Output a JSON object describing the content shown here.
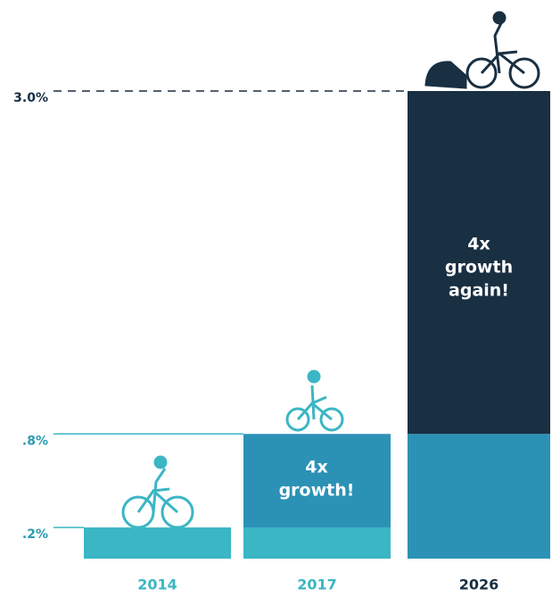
{
  "chart_data": {
    "type": "bar",
    "categories": [
      "2014",
      "2017",
      "2026"
    ],
    "series": [
      {
        "color": "#3bb6c4",
        "values": [
          0.2,
          0.2,
          null
        ]
      },
      {
        "color": "#2b92b6",
        "values": [
          null,
          0.6,
          0.8
        ]
      },
      {
        "color": "#192f42",
        "values": [
          null,
          null,
          2.2
        ]
      }
    ],
    "ylim": [
      0,
      3
    ],
    "yticks": [
      {
        "value": 0.2,
        "label": ".2%"
      },
      {
        "value": 0.8,
        "label": ".8%"
      },
      {
        "value": 3,
        "label": "3.0%"
      }
    ],
    "annotations": [
      [
        "4x",
        "growth!"
      ],
      [
        "4x",
        "growth",
        "again!"
      ]
    ]
  }
}
